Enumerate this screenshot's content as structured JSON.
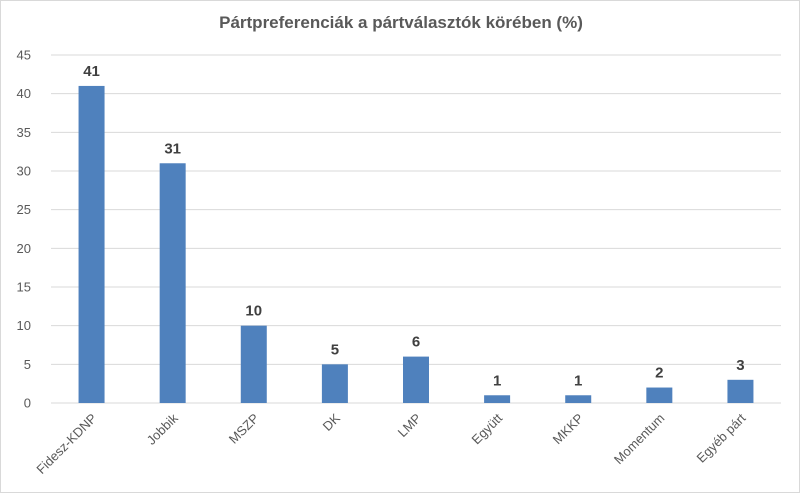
{
  "chart_data": {
    "type": "bar",
    "title": "Pártpreferenciák a pártválasztók körében (%)",
    "categories": [
      "Fidesz-KDNP",
      "Jobbik",
      "MSZP",
      "DK",
      "LMP",
      "Együtt",
      "MKKP",
      "Momentum",
      "Egyéb párt"
    ],
    "values": [
      41,
      31,
      10,
      5,
      6,
      1,
      1,
      2,
      3
    ],
    "ylim": [
      0,
      45
    ],
    "yticks": [
      0,
      5,
      10,
      15,
      20,
      25,
      30,
      35,
      40,
      45
    ],
    "grid": true,
    "legend": "none",
    "bar_color": "#4f81bd"
  }
}
